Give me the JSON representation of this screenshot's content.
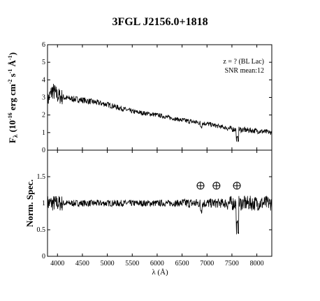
{
  "title": "3FGL J2156.0+1818",
  "chart_data": [
    {
      "type": "line",
      "panel": "top",
      "ylabel_main": "F",
      "ylabel_sub": "λ",
      "ylabel_rest": " (10",
      "ylabel_exp1": "-16",
      "ylabel_mid": " erg cm",
      "ylabel_exp2": "-2",
      "ylabel_s": " s",
      "ylabel_exp3": "-1",
      "ylabel_A": " Å",
      "ylabel_exp4": "-1",
      "ylabel_end": ")",
      "xlim": [
        3800,
        8300
      ],
      "ylim": [
        0,
        6
      ],
      "yticks": [
        "0",
        "1",
        "2",
        "3",
        "4",
        "5",
        "6"
      ],
      "annotations": [
        "z = ? (BL Lac)",
        "SNR mean:12"
      ],
      "anchors_x": [
        3800,
        3900,
        4000,
        4200,
        4500,
        5000,
        5500,
        6000,
        6500,
        7000,
        7500,
        8000,
        8300
      ],
      "anchors_y": [
        2.8,
        3.4,
        3.1,
        2.95,
        2.85,
        2.6,
        2.2,
        2.0,
        1.7,
        1.5,
        1.2,
        1.1,
        1.0
      ],
      "x": [],
      "y": []
    },
    {
      "type": "line",
      "panel": "bottom",
      "ylabel": "Norm. Spec.",
      "xlabel": "λ (Å)",
      "xlim": [
        3800,
        8300
      ],
      "ylim": [
        0,
        2
      ],
      "xticks": [
        "4000",
        "4500",
        "5000",
        "5500",
        "6000",
        "6500",
        "7000",
        "7500",
        "8000"
      ],
      "yticks": [
        "0",
        "0.5",
        "1",
        "1.5"
      ],
      "telluric_x": [
        6870,
        7190,
        7600
      ],
      "x": [],
      "y": []
    }
  ]
}
